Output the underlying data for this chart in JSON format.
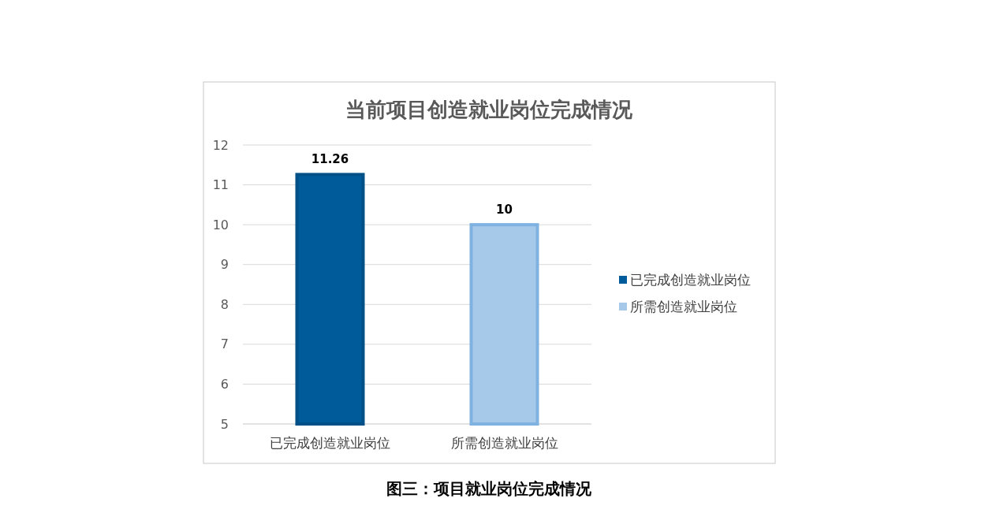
{
  "chart_data": {
    "type": "bar",
    "title": "当前项目创造就业岗位完成情况",
    "categories": [
      "已完成创造就业岗位",
      "所需创造就业岗位"
    ],
    "series": [
      {
        "name": "已完成创造就业岗位",
        "color": "#005b9a",
        "values": [
          11.26,
          null
        ]
      },
      {
        "name": "所需创造就业岗位",
        "color": "#a6c9ea",
        "values": [
          null,
          10
        ]
      }
    ],
    "ylim": [
      5,
      12
    ],
    "yticks": [
      5,
      6,
      7,
      8,
      9,
      10,
      11,
      12
    ],
    "grid": "y",
    "legend": "right",
    "data_labels": true,
    "annotations": [
      "图三：项目就业岗位完成情况"
    ]
  }
}
